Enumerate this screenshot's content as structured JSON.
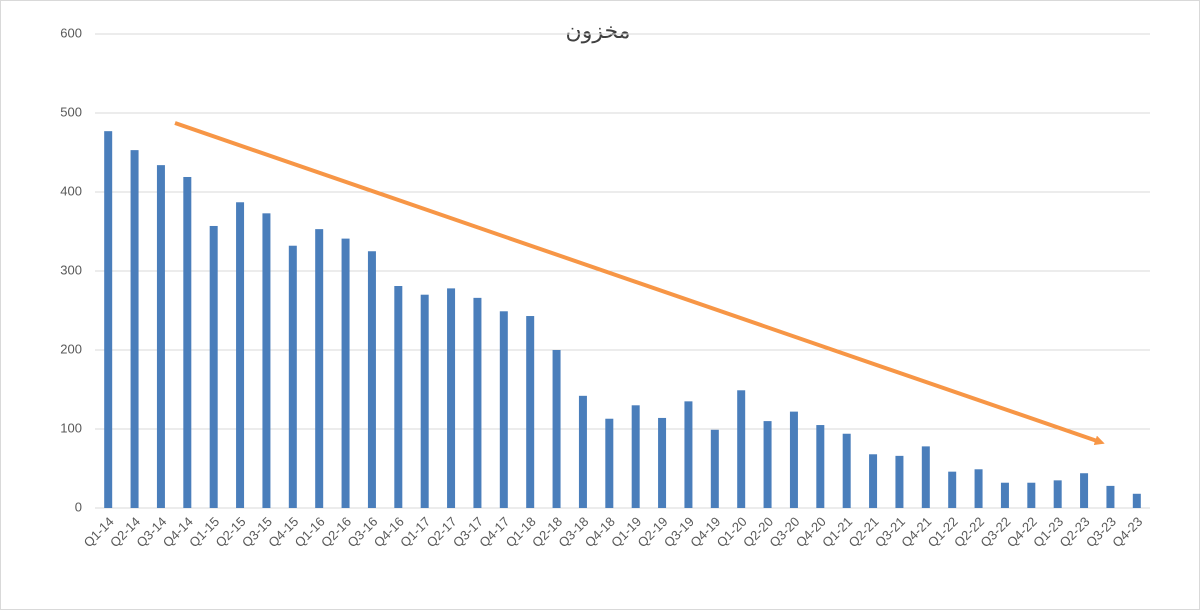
{
  "chart_data": {
    "type": "bar",
    "title": "مخزون",
    "categories": [
      "Q1-14",
      "Q2-14",
      "Q3-14",
      "Q4-14",
      "Q1-15",
      "Q2-15",
      "Q3-15",
      "Q4-15",
      "Q1-16",
      "Q2-16",
      "Q3-16",
      "Q4-16",
      "Q1-17",
      "Q2-17",
      "Q3-17",
      "Q4-17",
      "Q1-18",
      "Q2-18",
      "Q3-18",
      "Q4-18",
      "Q1-19",
      "Q2-19",
      "Q3-19",
      "Q4-19",
      "Q1-20",
      "Q2-20",
      "Q3-20",
      "Q4-20",
      "Q1-21",
      "Q2-21",
      "Q3-21",
      "Q4-21",
      "Q1-22",
      "Q2-22",
      "Q3-22",
      "Q4-22",
      "Q1-23",
      "Q2-23",
      "Q3-23",
      "Q4-23"
    ],
    "values": [
      477,
      453,
      434,
      419,
      357,
      387,
      373,
      332,
      353,
      341,
      325,
      281,
      270,
      278,
      266,
      249,
      243,
      200,
      142,
      113,
      130,
      114,
      135,
      99,
      149,
      110,
      122,
      105,
      94,
      68,
      66,
      78,
      46,
      49,
      32,
      32,
      35,
      44,
      28,
      18
    ],
    "color": "#4a7ebb",
    "ylim": [
      0,
      600
    ],
    "yticks": [
      0,
      100,
      200,
      300,
      400,
      500,
      600
    ],
    "grid": true
  }
}
